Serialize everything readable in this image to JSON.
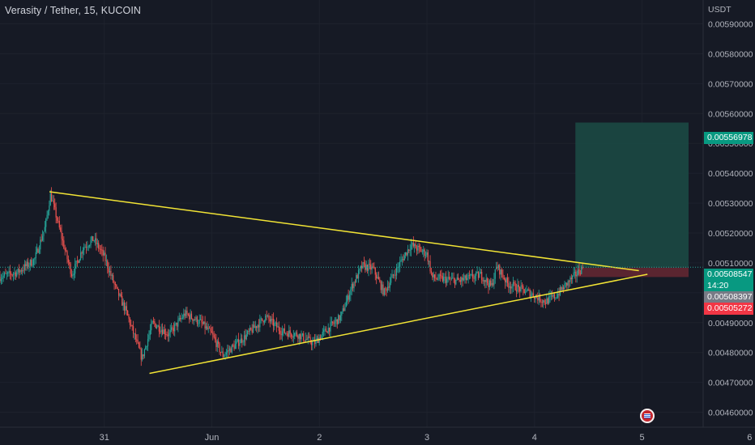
{
  "header": {
    "symbol_title": "Verasity / Tether, 15, KUCOIN",
    "currency": "USDT"
  },
  "price_badges": {
    "target": "0.00556978",
    "last": "0.00508547",
    "countdown": "14:20",
    "entry": "0.00508397",
    "stop": "0.00505272"
  },
  "colors": {
    "background": "#161a25",
    "up": "#26a69a",
    "down": "#ef5350",
    "trendline": "#f2e435",
    "target_zone": "#1b4944",
    "stop_zone": "#5e2630",
    "target_badge": "#089981",
    "stop_badge": "#f23645",
    "entry_badge": "#787b86"
  },
  "chart_data": {
    "type": "candlestick",
    "title": "Verasity / Tether, 15, KUCOIN",
    "ylabel": "USDT",
    "ylim": [
      0.00455,
      0.00598
    ],
    "y_ticks": [
      "0.00460000",
      "0.00470000",
      "0.00480000",
      "0.00490000",
      "0.00500000",
      "0.00510000",
      "0.00520000",
      "0.00530000",
      "0.00540000",
      "0.00550000",
      "0.00560000",
      "0.00570000",
      "0.00580000",
      "0.00590000"
    ],
    "x_ticks": [
      {
        "label": "31",
        "day": 0
      },
      {
        "label": "Jun",
        "day": 1
      },
      {
        "label": "2",
        "day": 2
      },
      {
        "label": "3",
        "day": 3
      },
      {
        "label": "4",
        "day": 4
      },
      {
        "label": "5",
        "day": 5
      },
      {
        "label": "6",
        "day": 6
      }
    ],
    "xlim_days": [
      -0.97,
      6.05
    ],
    "price_path": [
      [
        -1.0,
        0.00505
      ],
      [
        -0.8,
        0.00507
      ],
      [
        -0.65,
        0.00511
      ],
      [
        -0.55,
        0.00522
      ],
      [
        -0.5,
        0.00533
      ],
      [
        -0.45,
        0.00526
      ],
      [
        -0.35,
        0.00512
      ],
      [
        -0.3,
        0.00506
      ],
      [
        -0.2,
        0.00515
      ],
      [
        -0.1,
        0.00518
      ],
      [
        0.0,
        0.00512
      ],
      [
        0.1,
        0.00502
      ],
      [
        0.2,
        0.00494
      ],
      [
        0.35,
        0.00478
      ],
      [
        0.45,
        0.0049
      ],
      [
        0.6,
        0.00486
      ],
      [
        0.75,
        0.00493
      ],
      [
        0.9,
        0.0049
      ],
      [
        1.0,
        0.00486
      ],
      [
        1.1,
        0.00479
      ],
      [
        1.3,
        0.00485
      ],
      [
        1.5,
        0.00492
      ],
      [
        1.65,
        0.00487
      ],
      [
        1.8,
        0.00486
      ],
      [
        1.95,
        0.00483
      ],
      [
        2.05,
        0.00487
      ],
      [
        2.2,
        0.00492
      ],
      [
        2.3,
        0.00502
      ],
      [
        2.4,
        0.00509
      ],
      [
        2.5,
        0.00508
      ],
      [
        2.6,
        0.005
      ],
      [
        2.75,
        0.0051
      ],
      [
        2.85,
        0.00516
      ],
      [
        3.0,
        0.00513
      ],
      [
        3.05,
        0.00505
      ],
      [
        3.3,
        0.00504
      ],
      [
        3.5,
        0.00506
      ],
      [
        3.6,
        0.00502
      ],
      [
        3.65,
        0.00509
      ],
      [
        3.75,
        0.00503
      ],
      [
        3.95,
        0.005
      ],
      [
        4.1,
        0.00497
      ],
      [
        4.2,
        0.00499
      ],
      [
        4.3,
        0.00503
      ],
      [
        4.45,
        0.00508547
      ]
    ],
    "trendlines": [
      {
        "name": "",
        "from": [
          -0.51,
          0.005338
        ],
        "to": [
          4.97,
          0.005074
        ]
      },
      {
        "name": "",
        "from": [
          0.42,
          0.00473
        ],
        "to": [
          5.05,
          0.005062
        ]
      }
    ],
    "position": {
      "type": "long",
      "start_day": 4.38,
      "end_day": 6.0,
      "entry": 0.00508397,
      "target": 0.00556978,
      "stop": 0.00505272
    },
    "last_price": 0.00508547,
    "grid": true
  }
}
